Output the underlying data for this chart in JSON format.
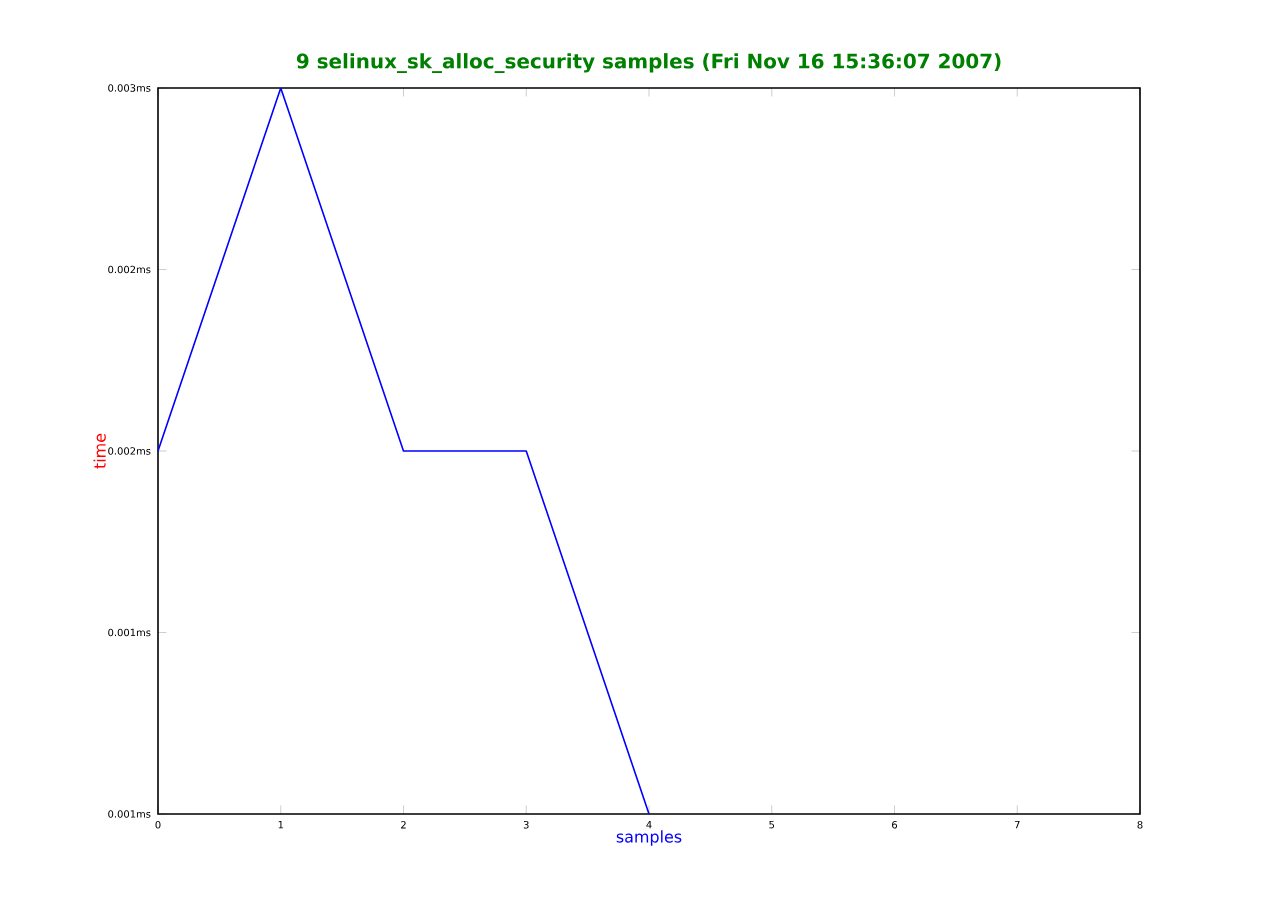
{
  "chart_data": {
    "type": "line",
    "title": "9 selinux_sk_alloc_security samples (Fri Nov 16 15:36:07 2007)",
    "xlabel": "samples",
    "ylabel": "time",
    "x": [
      0,
      1,
      2,
      3,
      4
    ],
    "values": [
      0.002,
      0.003,
      0.002,
      0.002,
      0.001
    ],
    "color": "#0000ff",
    "xlim": [
      0,
      8
    ],
    "xticks": [
      0,
      1,
      2,
      3,
      4,
      5,
      6,
      7,
      8
    ],
    "ylim": [
      0.001,
      0.003
    ],
    "yticks": [
      {
        "value": 0.001,
        "label": "0.001ms"
      },
      {
        "value": 0.0015,
        "label": "0.001ms"
      },
      {
        "value": 0.002,
        "label": "0.002ms"
      },
      {
        "value": 0.0025,
        "label": "0.002ms"
      },
      {
        "value": 0.003,
        "label": "0.003ms"
      }
    ]
  }
}
